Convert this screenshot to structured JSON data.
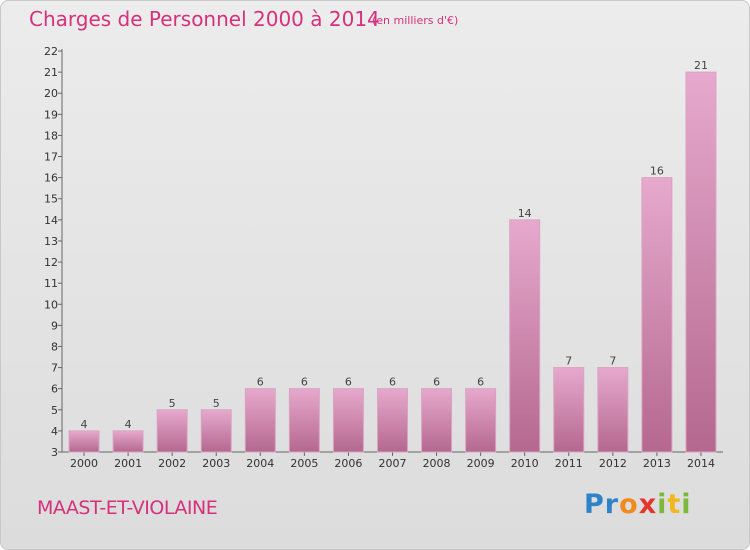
{
  "header": {
    "title": "Charges de Personnel 2000 à 2014",
    "subtitle": "(en milliers d'€)"
  },
  "footer": {
    "commune": "MAAST-ET-VIOLAINE",
    "logo_letters": [
      "P",
      "r",
      "o",
      "x",
      "i",
      "t",
      "i"
    ]
  },
  "colors": {
    "title": "#d6317c",
    "bar_top": "#e6a9cd",
    "bar_bottom": "#b5688f",
    "background": "#e4e4e4"
  },
  "chart_data": {
    "type": "bar",
    "title": "Charges de Personnel 2000 à 2014",
    "subtitle": "(en milliers d'€)",
    "categories": [
      "2000",
      "2001",
      "2002",
      "2003",
      "2004",
      "2005",
      "2006",
      "2007",
      "2008",
      "2009",
      "2010",
      "2011",
      "2012",
      "2013",
      "2014"
    ],
    "values": [
      4,
      4,
      5,
      5,
      6,
      6,
      6,
      6,
      6,
      6,
      14,
      7,
      7,
      16,
      21
    ],
    "value_labels": [
      "4",
      "4",
      "5",
      "5",
      "6",
      "6",
      "6",
      "6",
      "6",
      "6",
      "14",
      "7",
      "7",
      "16",
      "21"
    ],
    "ylim": [
      3,
      22
    ],
    "yticks": [
      "3",
      "4",
      "5",
      "6",
      "7",
      "8",
      "9",
      "10",
      "11",
      "12",
      "13",
      "14",
      "15",
      "16",
      "17",
      "18",
      "19",
      "20",
      "21",
      "22"
    ],
    "xlabel": "",
    "ylabel": "",
    "grid": false,
    "legend": "none"
  }
}
